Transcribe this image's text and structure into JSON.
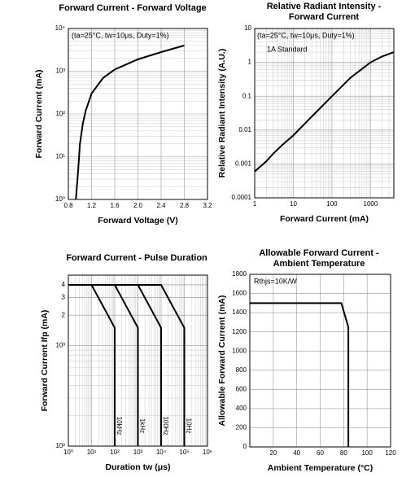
{
  "chart_data": [
    {
      "type": "line",
      "title": "Forward Current - Forward Voltage",
      "xlabel": "Forward Voltage (V)",
      "ylabel": "Forward Current (mA)",
      "annotations": [
        "(ta=25°C, tw=10μs, Duty=1%)"
      ],
      "xlim": [
        0.8,
        3.2
      ],
      "xticks": [
        0.8,
        1.2,
        1.6,
        {
          "value": 2,
          "label": "2.0"
        },
        2.4,
        2.8,
        3.2
      ],
      "ylim": [
        1,
        10000
      ],
      "ylog": true,
      "yticks": [
        {
          "value": 1,
          "label": "10⁰"
        },
        {
          "value": 10,
          "label": "10¹"
        },
        {
          "value": 100,
          "label": "10²"
        },
        {
          "value": 1000,
          "label": "10³"
        },
        {
          "value": 10000,
          "label": "10⁴"
        }
      ],
      "grid": true,
      "series": [
        {
          "color": "#000000",
          "x": [
            0.93,
            0.97,
            1.0,
            1.05,
            1.1,
            1.2,
            1.4,
            1.6,
            2.0,
            2.4,
            2.8
          ],
          "values": [
            1,
            5,
            20,
            60,
            120,
            300,
            700,
            1100,
            1900,
            2800,
            4000
          ]
        }
      ]
    },
    {
      "type": "line",
      "title": [
        "Relative Radiant Intensity -",
        "Forward Current"
      ],
      "xlabel": "Forward Current (mA)",
      "ylabel": "Relative Radiant Intensity (A.U.)",
      "annotations": [
        "(ta=25°C, tw=10μs, Duty=1%)",
        "1A Standard"
      ],
      "xlim": [
        1,
        4000
      ],
      "xlog": true,
      "xticks": [
        1,
        10,
        100,
        1000
      ],
      "ylim": [
        0.0001,
        10
      ],
      "ylog": true,
      "yticks": [
        0.0001,
        0.001,
        0.01,
        0.1,
        1,
        10
      ],
      "grid": true,
      "series": [
        {
          "color": "#000000",
          "x": [
            1,
            2,
            3,
            5,
            10,
            30,
            100,
            300,
            1000,
            2000,
            4000
          ],
          "values": [
            0.0006,
            0.0012,
            0.002,
            0.0035,
            0.007,
            0.025,
            0.1,
            0.35,
            1,
            1.5,
            2
          ]
        }
      ]
    },
    {
      "type": "line",
      "title": "Forward Current - Pulse Duration",
      "xlabel": "Duration tw (μs)",
      "ylabel": "Forward Current Ifp (mA)",
      "xlim": [
        1,
        1000000
      ],
      "xlog": true,
      "xticks": [
        {
          "value": 1,
          "label": "10⁰"
        },
        {
          "value": 10,
          "label": "10¹"
        },
        {
          "value": 100,
          "label": "10²"
        },
        {
          "value": 1000,
          "label": "10³"
        },
        {
          "value": 10000,
          "label": "10⁴"
        },
        {
          "value": 100000,
          "label": "10⁵"
        },
        {
          "value": 1000000,
          "label": "10⁶"
        }
      ],
      "ylim": [
        100,
        5000
      ],
      "ylog": true,
      "yticks": [
        {
          "value": 100,
          "label": "10²"
        },
        {
          "value": 1000,
          "label": "10³"
        },
        {
          "value": 2000,
          "label": "2"
        },
        {
          "value": 3000,
          "label": "3"
        },
        {
          "value": 4000,
          "label": "4"
        }
      ],
      "grid": true,
      "series": [
        {
          "name": "10kHz",
          "color": "#000000",
          "x": [
            1,
            10,
            100,
            100
          ],
          "values": [
            4000,
            4000,
            1500,
            100
          ]
        },
        {
          "name": "1kHz",
          "color": "#000000",
          "x": [
            1,
            100,
            1000,
            1000
          ],
          "values": [
            4000,
            4000,
            1500,
            100
          ]
        },
        {
          "name": "100Hz",
          "color": "#000000",
          "x": [
            1,
            1000,
            10000,
            10000
          ],
          "values": [
            4000,
            4000,
            1500,
            100
          ]
        },
        {
          "name": "10Hz",
          "color": "#000000",
          "x": [
            1,
            10000,
            100000,
            100000
          ],
          "values": [
            4000,
            4000,
            1500,
            100
          ]
        }
      ]
    },
    {
      "type": "line",
      "title": [
        "Allowable Forward Current -",
        "Ambient Temperature"
      ],
      "xlabel": "Ambient Temperature (°C)",
      "ylabel": "Allowable Forward Current (mA)",
      "annotations": [
        "Rthjs=10K/W"
      ],
      "xlim": [
        0,
        120
      ],
      "xticks": [
        20,
        40,
        60,
        80,
        100,
        120
      ],
      "ylim": [
        0,
        1800
      ],
      "yticks": [
        0,
        200,
        400,
        600,
        800,
        1000,
        1200,
        1400,
        1600,
        1800
      ],
      "grid": true,
      "series": [
        {
          "color": "#000000",
          "x": [
            0,
            78,
            84,
            84
          ],
          "values": [
            1500,
            1500,
            1250,
            0
          ]
        }
      ]
    }
  ]
}
